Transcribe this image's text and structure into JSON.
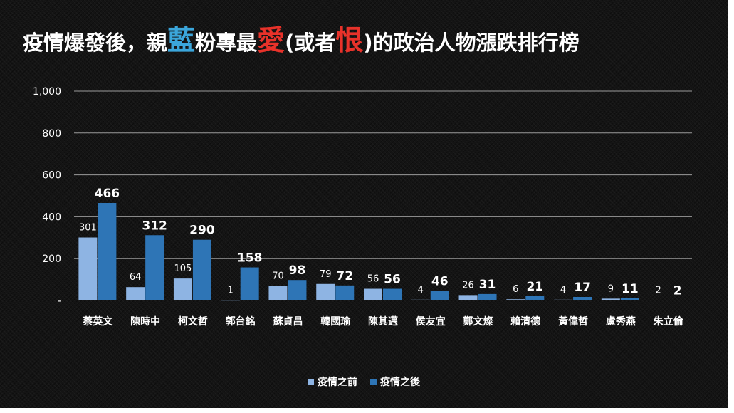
{
  "title": {
    "p1": "疫情爆發後，親",
    "p2": "藍",
    "p3": "粉專最",
    "p4": "愛",
    "p5": "(或者",
    "p6": "恨",
    "p7": ")的政治人物漲跌排行榜"
  },
  "colors": {
    "before": "#8eb4e3",
    "after": "#2e75b6",
    "blue_text": "#3ba6db",
    "red_text": "#e8322a"
  },
  "chart_data": {
    "type": "bar",
    "categories": [
      "蔡英文",
      "陳時中",
      "柯文哲",
      "郭台銘",
      "蘇貞昌",
      "韓國瑜",
      "陳其邁",
      "侯友宜",
      "鄭文燦",
      "賴清德",
      "黃偉哲",
      "盧秀燕",
      "朱立倫"
    ],
    "series": [
      {
        "name": "疫情之前",
        "values": [
          301,
          64,
          105,
          1,
          70,
          79,
          56,
          4,
          26,
          6,
          4,
          9,
          2
        ]
      },
      {
        "name": "疫情之後",
        "values": [
          466,
          312,
          290,
          158,
          98,
          72,
          56,
          46,
          31,
          21,
          17,
          11,
          2
        ]
      }
    ],
    "y_ticks": [
      "-",
      "200",
      "400",
      "600",
      "800",
      "1,000"
    ],
    "ylim": [
      0,
      1000
    ],
    "grid": true,
    "legend": "bottom"
  }
}
